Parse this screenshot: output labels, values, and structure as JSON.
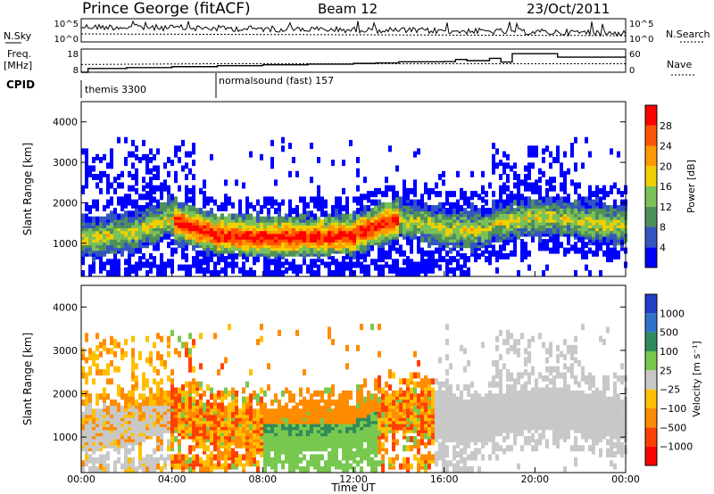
{
  "header": {
    "station": "Prince George (fitACF)",
    "beam": "Beam 12",
    "date": "23/Oct/2011"
  },
  "left_labels": {
    "nsky": "N.Sky",
    "freq_line1": "Freq.",
    "freq_line2": "[MHz]",
    "cpid": "CPID"
  },
  "right_labels": {
    "nsearch": "N.Search",
    "nave": "Nave"
  },
  "cpid_programs": [
    {
      "name": "themis 3300",
      "start_hour": 0
    },
    {
      "name": "normalsound (fast) 157",
      "start_hour": 6
    }
  ],
  "time_axis": {
    "label": "Time UT",
    "ticks": [
      "00:00",
      "04:00",
      "08:00",
      "12:00",
      "16:00",
      "20:00",
      "00:00"
    ]
  },
  "colors": {
    "power": [
      "#0000ff",
      "#3355c0",
      "#4f8f5a",
      "#7ac15a",
      "#f0d000",
      "#ff9a00",
      "#ff5500",
      "#ff0000"
    ],
    "velocity": [
      "#1f3fc4",
      "#2f73c8",
      "#2f8c5a",
      "#78c850",
      "#c8c8c8",
      "#ffc000",
      "#ff8c00",
      "#ff4000",
      "#ff0000"
    ]
  },
  "chart_data": [
    {
      "type": "line",
      "panel": "noise",
      "series": [
        {
          "name": "N.Sky",
          "style": "solid"
        },
        {
          "name": "N.Search",
          "style": "dotted"
        }
      ],
      "y_left_ticks": [
        "10^5",
        "10^0"
      ],
      "y_right_ticks": [
        "10^5",
        "10^0"
      ],
      "xlim": [
        0,
        24
      ]
    },
    {
      "type": "line",
      "panel": "frequency_nave",
      "series": [
        {
          "name": "Freq.",
          "style": "solid",
          "x": [
            0,
            0.3,
            1,
            2,
            3,
            4,
            5,
            6,
            7,
            8,
            9,
            10,
            11,
            12,
            13,
            14,
            15,
            16,
            16.5,
            17,
            18,
            18.5,
            19,
            20,
            21,
            22,
            23,
            24
          ],
          "y": [
            8,
            9.6,
            9.6,
            10,
            10,
            10.4,
            10.4,
            10.8,
            10.8,
            11.2,
            11.2,
            11.5,
            11.5,
            11.8,
            12,
            12.5,
            12.5,
            12.6,
            13.5,
            13,
            14,
            12.4,
            16,
            16,
            14.5,
            14.5,
            14.5,
            14.5
          ]
        },
        {
          "name": "Nave",
          "style": "dotted",
          "x": [
            0,
            6,
            12,
            18,
            24
          ],
          "y": [
            20,
            22,
            22,
            22,
            22
          ]
        }
      ],
      "y_left_ticks": [
        18,
        8
      ],
      "y_right_ticks": [
        60,
        0
      ],
      "xlim": [
        0,
        24
      ]
    },
    {
      "type": "heatmap",
      "panel": "power",
      "ylabel": "Slant Range [km]",
      "ylim": [
        180,
        4500
      ],
      "y_ticks": [
        1000,
        2000,
        3000,
        4000
      ],
      "colorbar": {
        "label": "Power [dB]",
        "ticks": [
          4,
          8,
          12,
          16,
          20,
          24,
          28
        ]
      },
      "xlim": [
        0,
        24
      ]
    },
    {
      "type": "heatmap",
      "panel": "velocity",
      "ylabel": "Slant Range [km]",
      "ylim": [
        180,
        4500
      ],
      "y_ticks": [
        1000,
        2000,
        3000,
        4000
      ],
      "colorbar": {
        "label": "Velocity [m s⁻¹]",
        "ticks": [
          "1000",
          "500",
          "100",
          "25",
          "−25",
          "−100",
          "−500",
          "−1000"
        ]
      },
      "xlim": [
        0,
        24
      ]
    }
  ]
}
